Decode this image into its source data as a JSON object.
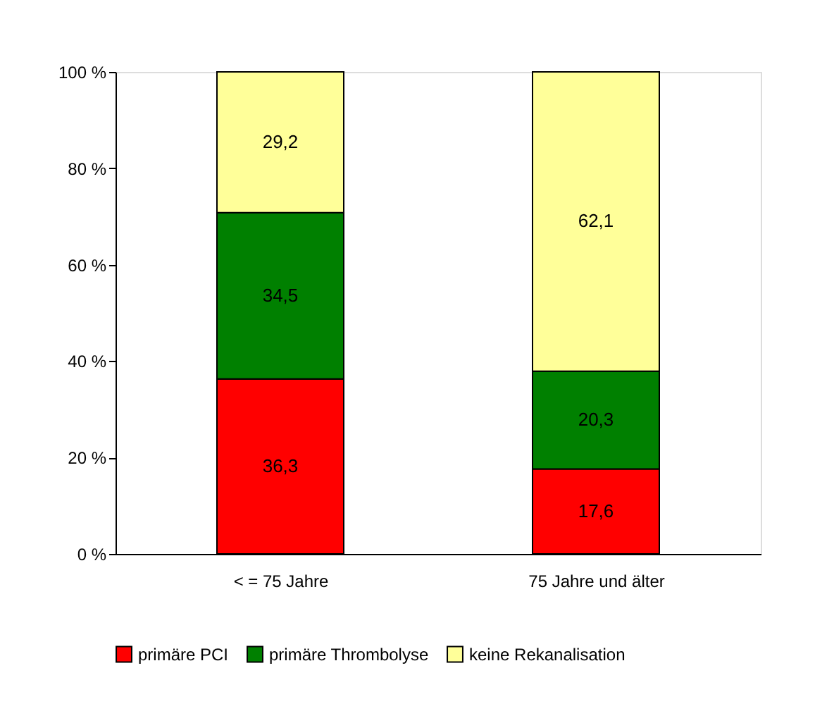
{
  "chart_data": {
    "type": "bar",
    "stacked": true,
    "categories": [
      "< =  75 Jahre",
      "75 Jahre und älter"
    ],
    "series": [
      {
        "name": "primäre PCI",
        "color": "#ff0000",
        "values": [
          36.3,
          17.6
        ],
        "value_labels": [
          "36,3",
          "17,6"
        ]
      },
      {
        "name": "primäre Thrombolyse",
        "color": "#008000",
        "values": [
          34.5,
          20.3
        ],
        "value_labels": [
          "34,5",
          "20,3"
        ]
      },
      {
        "name": "keine Rekanalisation",
        "color": "#ffff99",
        "values": [
          29.2,
          62.1
        ],
        "value_labels": [
          "29,2",
          "62,1"
        ]
      }
    ],
    "ylim": [
      0,
      100
    ],
    "yticks": [
      {
        "value": 0,
        "label": "0 %"
      },
      {
        "value": 20,
        "label": "20 %"
      },
      {
        "value": 40,
        "label": "40 %"
      },
      {
        "value": 60,
        "label": "60 %"
      },
      {
        "value": 80,
        "label": "80 %"
      },
      {
        "value": 100,
        "label": "100 %"
      }
    ],
    "grid": false,
    "legend": "bottom"
  }
}
